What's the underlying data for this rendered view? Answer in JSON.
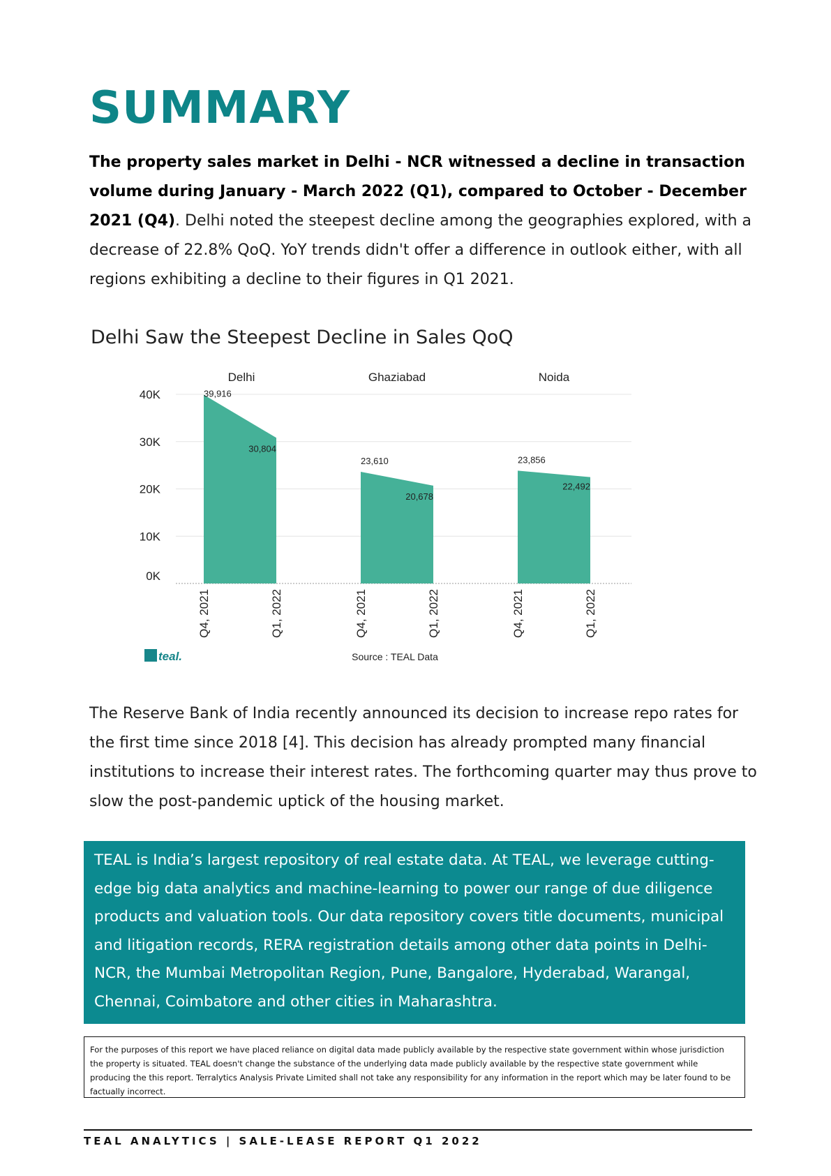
{
  "title": "SUMMARY",
  "intro": {
    "bold": "The property sales market in Delhi - NCR witnessed a decline in transaction volume during January - March 2022 (Q1), compared to October - December 2021 (Q4)",
    "period": ".",
    "rest": " Delhi noted the steepest decline among the geographies explored, with a decrease of 22.8% QoQ. YoY trends didn't offer a difference in outlook either, with all regions exhibiting a decline to their figures in Q1 2021."
  },
  "chart_title": "Delhi Saw the Steepest Decline in Sales QoQ",
  "chart_data": {
    "type": "area",
    "title": "Delhi Saw the Steepest Decline in Sales QoQ",
    "ylim": [
      0,
      40000
    ],
    "y_ticks": [
      "0K",
      "10K",
      "20K",
      "30K",
      "40K"
    ],
    "y_tick_values": [
      0,
      10000,
      20000,
      30000,
      40000
    ],
    "grid": true,
    "color": "#45b198",
    "panels": [
      {
        "name": "Delhi",
        "x": [
          "Q4, 2021",
          "Q1, 2022"
        ],
        "values": [
          39916,
          30804
        ],
        "labels": [
          "39,916",
          "30,804"
        ]
      },
      {
        "name": "Ghaziabad",
        "x": [
          "Q4, 2021",
          "Q1, 2022"
        ],
        "values": [
          23610,
          20678
        ],
        "labels": [
          "23,610",
          "20,678"
        ]
      },
      {
        "name": "Noida",
        "x": [
          "Q4, 2021",
          "Q1, 2022"
        ],
        "values": [
          23856,
          22492
        ],
        "labels": [
          "23,856",
          "22,492"
        ]
      }
    ],
    "source": "Source : TEAL Data"
  },
  "logo_text": "teal.",
  "paragraph2": "The Reserve Bank of India recently announced its decision to increase repo rates for the first time since 2018 [4]. This decision has already prompted many financial institutions to increase their interest rates. The forthcoming quarter may thus prove to slow the post-pandemic uptick of the housing market.",
  "about": " TEAL is India’s largest repository of real estate data. At TEAL, we leverage cutting-edge big data analytics and machine-learning to power our range of due diligence products and valuation tools. Our data repository covers title documents, municipal and litigation records, RERA registration details among other data points in Delhi-NCR, the Mumbai Metropolitan Region, Pune, Bangalore, Hyderabad, Warangal, Chennai, Coimbatore and other cities in Maharashtra.",
  "disclaimer": "For the purposes of this report we have placed reliance on digital data made publicly available by the respective state government within whose jurisdiction the property is situated. TEAL doesn't change the substance of the underlying data made publicly available by the respective state government while producing the this report. Terralytics Analysis Private Limited shall not take any responsibility for any information in the report which may be later found to be factually incorrect.",
  "footer": "TEAL ANALYTICS | SALE-LEASE REPORT Q1 2022",
  "colors": {
    "accent": "#0e8588",
    "box": "#0c8a90",
    "area": "#45b198"
  }
}
